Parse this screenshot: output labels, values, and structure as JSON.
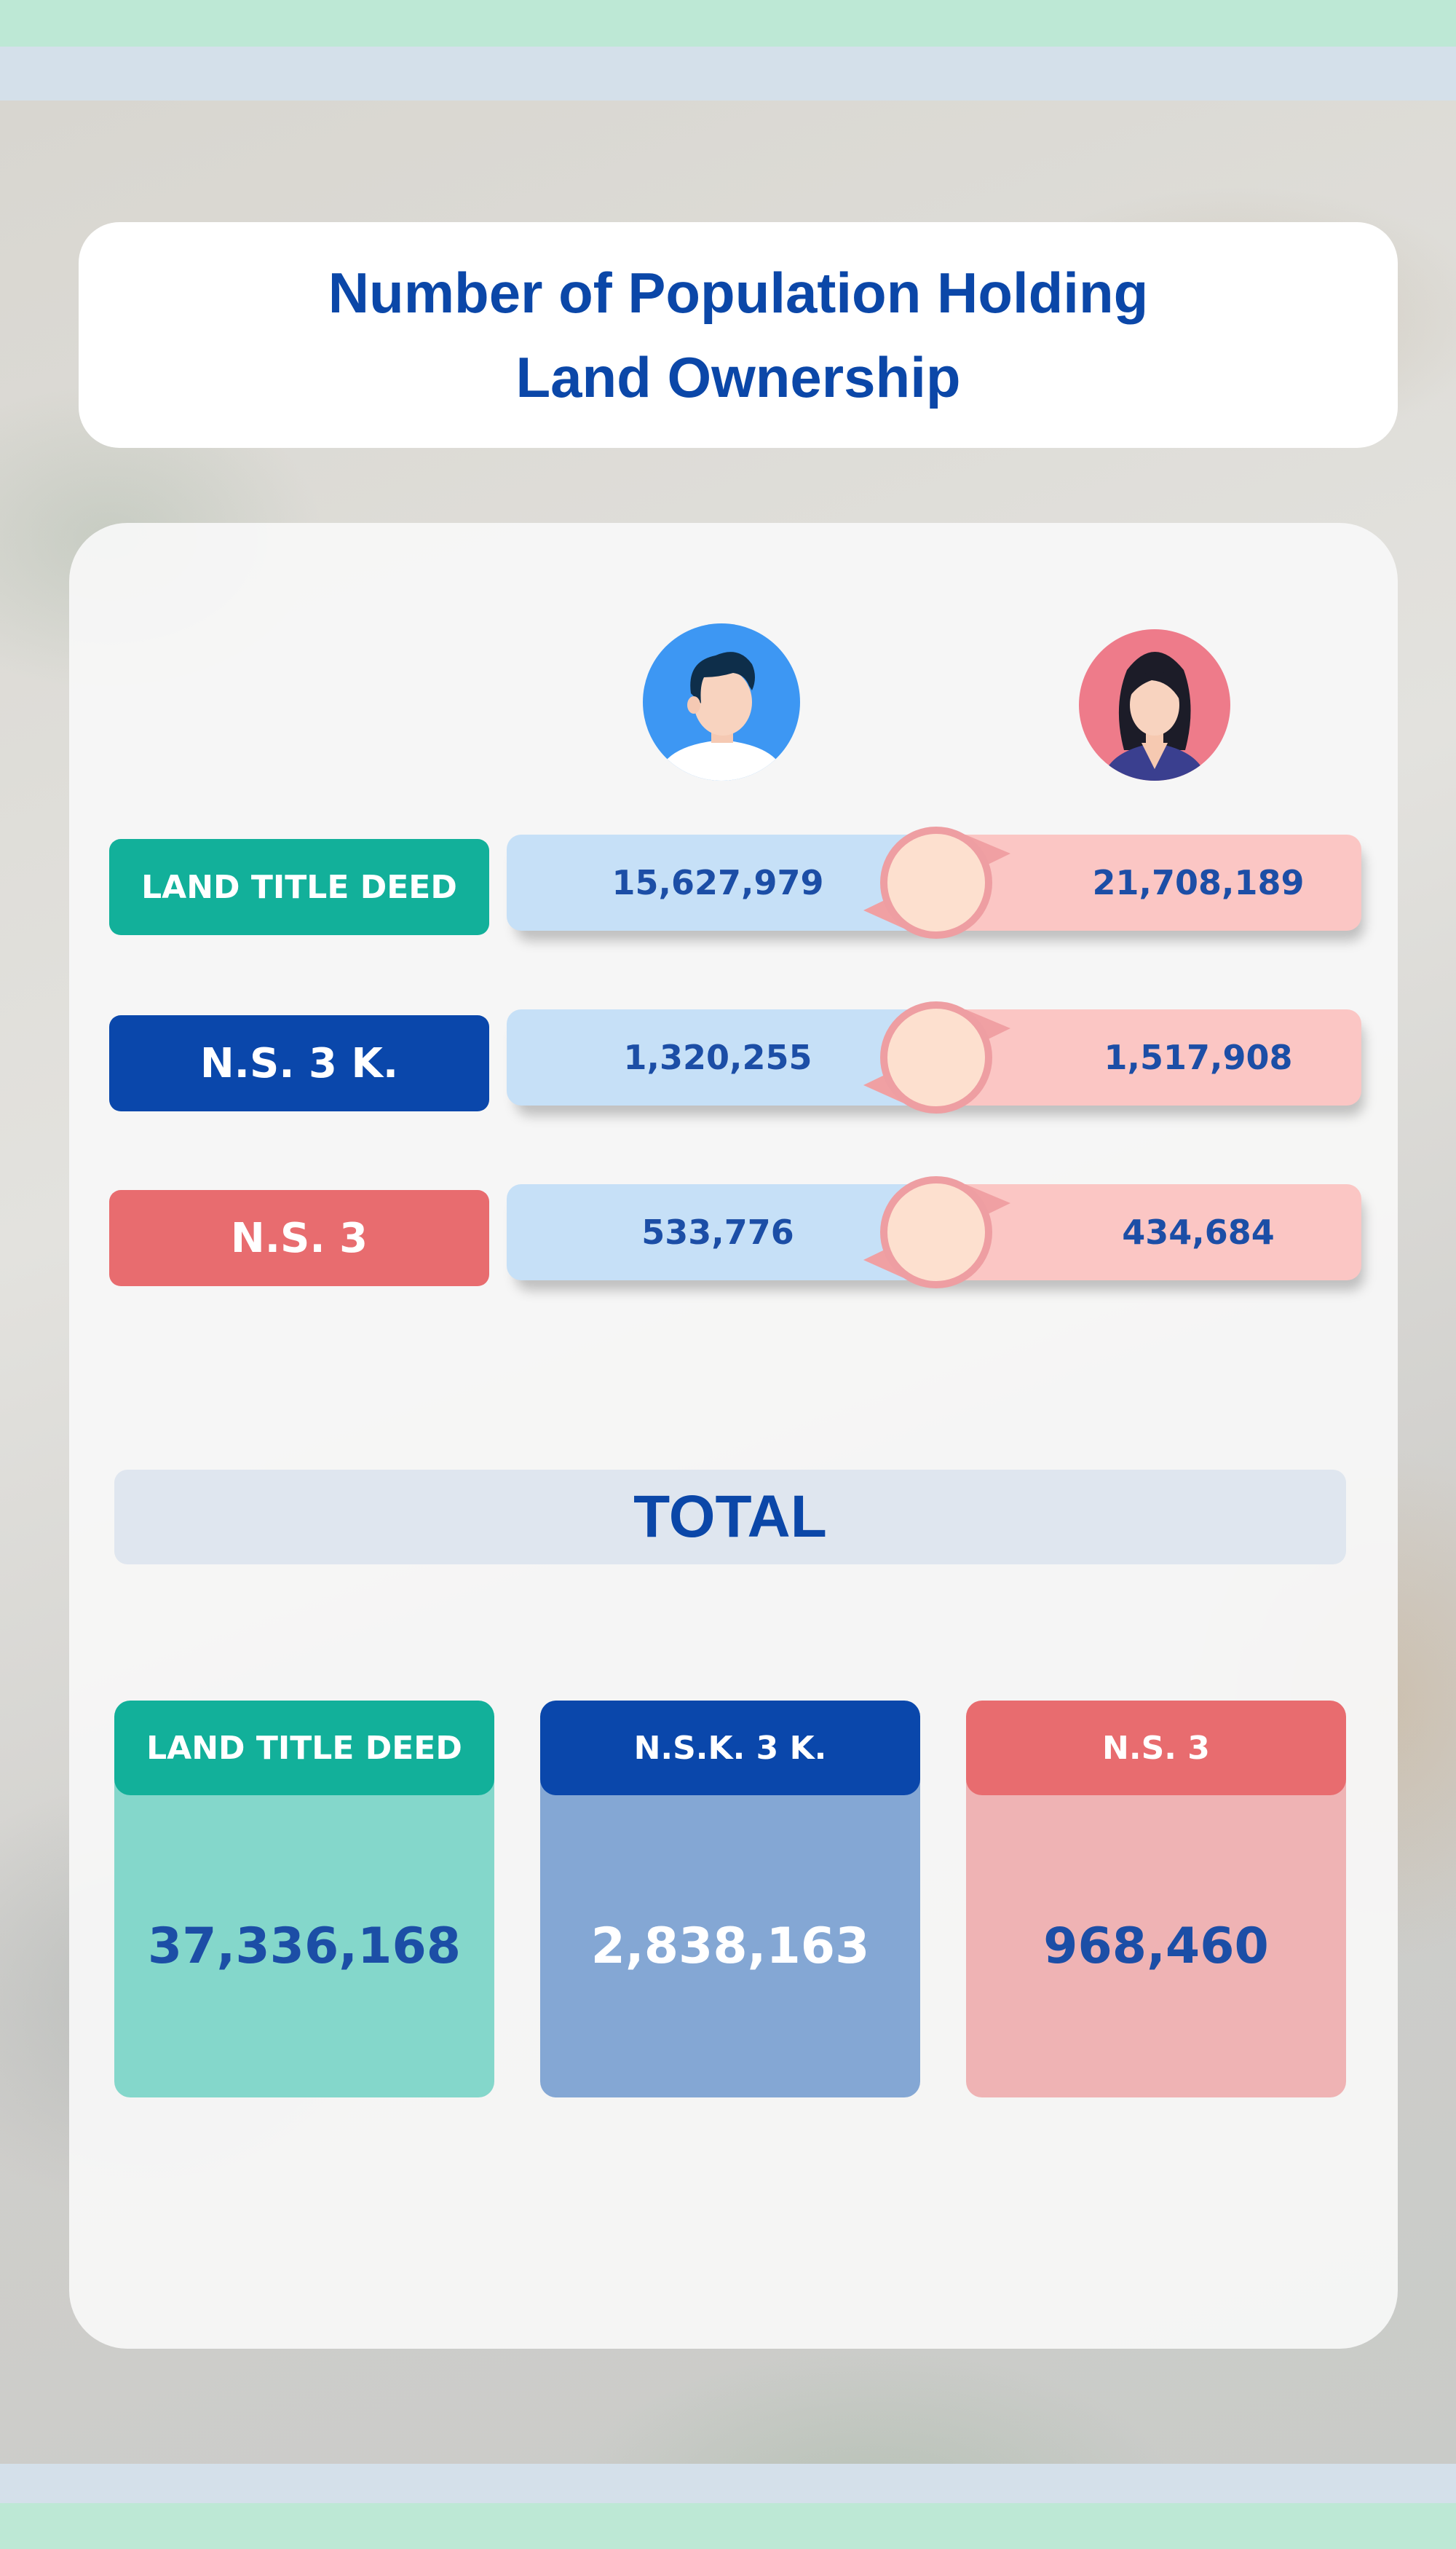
{
  "title": {
    "line1": "Number of Population Holding",
    "line2": "Land Ownership"
  },
  "colors": {
    "brand_blue": "#0b47a8",
    "teal": "#12b09a",
    "navy": "#0a47ab",
    "coral": "#e86c6f",
    "male_bar": "#c6e0f7",
    "female_bar": "#fbc6c4",
    "value_text": "#1c4ea6"
  },
  "avatars": {
    "male_icon": "male-person-icon",
    "female_icon": "female-person-icon"
  },
  "chart_data": [
    {
      "type": "bar",
      "categories": [
        "LAND TITLE DEED",
        "N.S. 3 K.",
        "N.S. 3"
      ],
      "series": [
        {
          "values": [
            15627979,
            1320255,
            533776
          ]
        },
        {
          "values": [
            21708189,
            1517908,
            434684
          ]
        }
      ],
      "series_display": [
        [
          "15,627,979",
          "1,320,255",
          "533,776"
        ],
        [
          "21,708,189",
          "1,517,908",
          "434,684"
        ]
      ],
      "series_icons": [
        "male-person-icon",
        "female-person-icon"
      ]
    },
    {
      "type": "table",
      "title": "TOTAL",
      "categories": [
        "LAND TITLE DEED",
        "N.S.K. 3 K.",
        "N.S. 3"
      ],
      "values": [
        37336168,
        2838163,
        968460
      ],
      "display": [
        "37,336,168",
        "2,838,163",
        "968,460"
      ]
    }
  ]
}
